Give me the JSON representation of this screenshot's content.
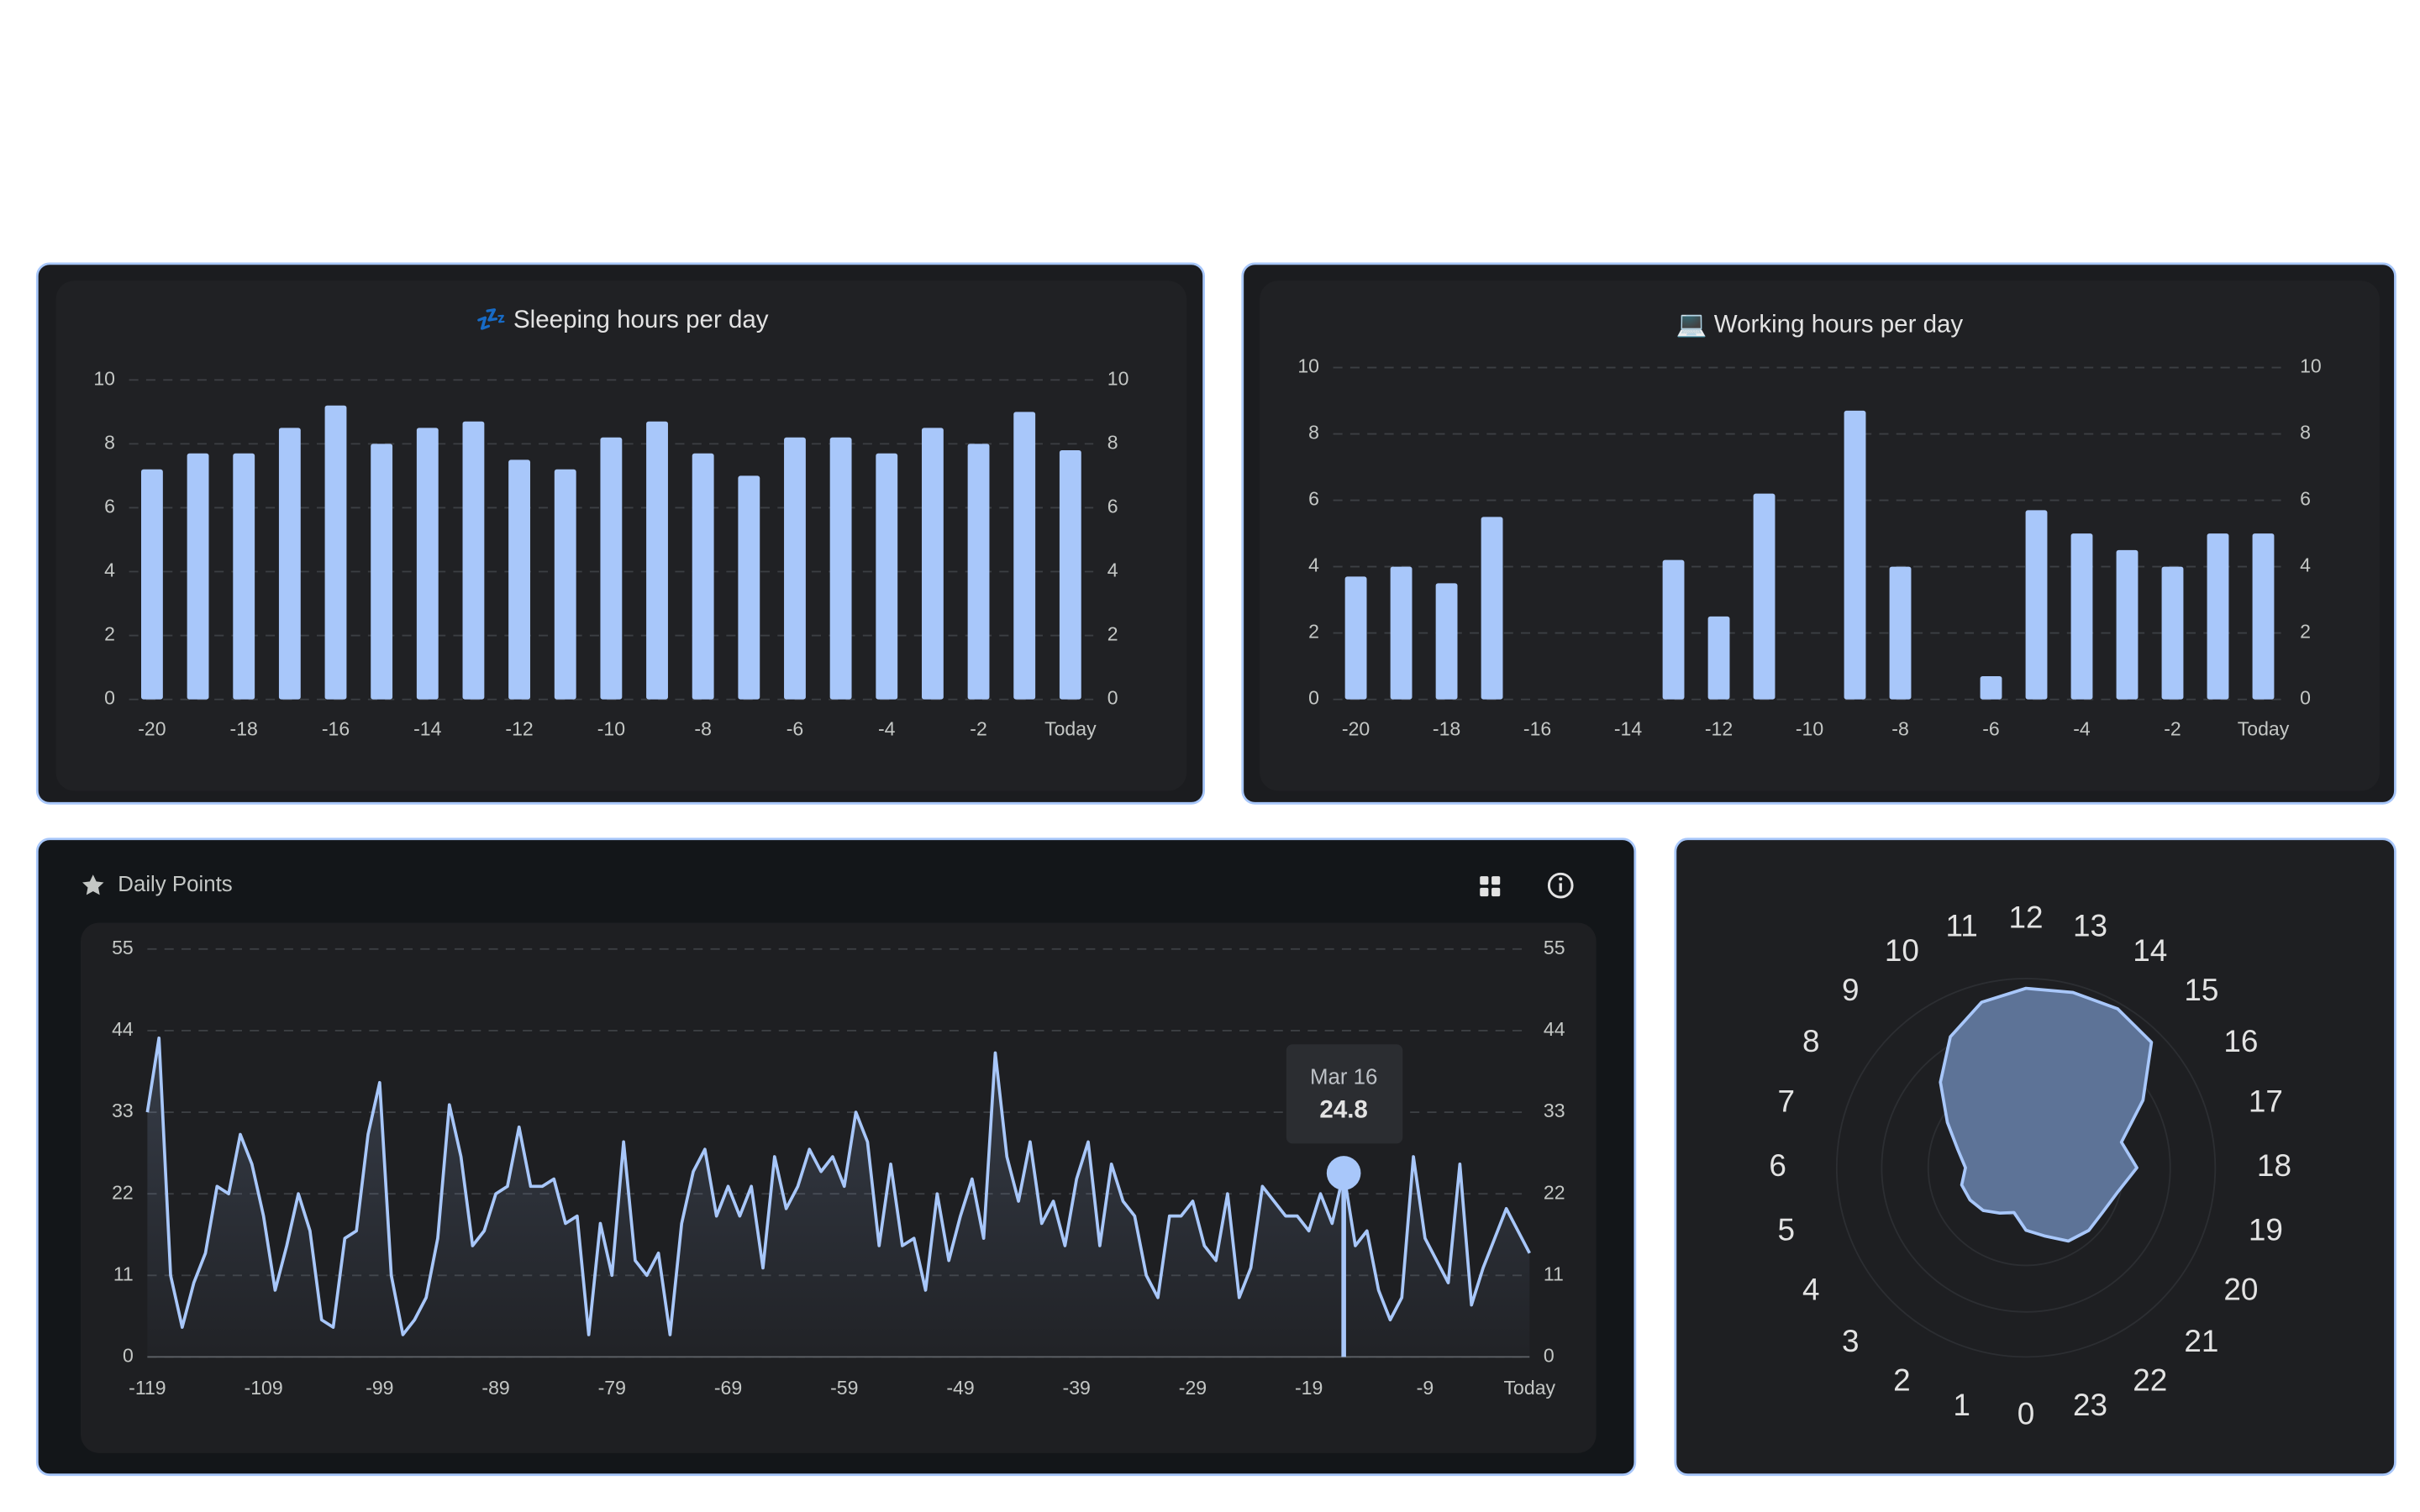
{
  "chart_data": [
    {
      "type": "bar",
      "title": "💤 Sleeping hours per day",
      "categories": [
        "-20",
        null,
        "-18",
        null,
        "-16",
        null,
        "-14",
        null,
        "-12",
        null,
        "-10",
        null,
        "-8",
        null,
        "-6",
        null,
        "-4",
        null,
        "-2",
        null,
        "Today"
      ],
      "values": [
        7.2,
        7.7,
        7.7,
        8.5,
        9.2,
        8.0,
        8.5,
        8.7,
        7.5,
        7.2,
        8.2,
        8.7,
        7.7,
        7.0,
        8.2,
        8.2,
        7.7,
        8.5,
        8.0,
        9.0,
        7.8
      ],
      "color": "#a8c7fa",
      "ylim": [
        0,
        10
      ],
      "yticks": [
        0,
        2,
        4,
        6,
        8,
        10
      ],
      "y2lim": [
        0,
        10
      ],
      "y2ticks": [
        0,
        2,
        4,
        6,
        8,
        10
      ],
      "grid": true
    },
    {
      "type": "bar",
      "title": "💻 Working hours per day",
      "categories": [
        "-20",
        null,
        "-18",
        null,
        "-16",
        null,
        "-14",
        null,
        "-12",
        null,
        "-10",
        null,
        "-8",
        null,
        "-6",
        null,
        "-4",
        null,
        "-2",
        null,
        "Today"
      ],
      "values": [
        3.7,
        4.0,
        3.5,
        5.5,
        0,
        0,
        0,
        4.2,
        2.5,
        6.2,
        0,
        8.7,
        4.0,
        0,
        0.7,
        5.7,
        5.0,
        4.5,
        4.0,
        5.0,
        5.0
      ],
      "color": "#a8c7fa",
      "ylim": [
        0,
        10
      ],
      "yticks": [
        0,
        2,
        4,
        6,
        8,
        10
      ],
      "y2lim": [
        0,
        10
      ],
      "y2ticks": [
        0,
        2,
        4,
        6,
        8,
        10
      ],
      "grid": true
    },
    {
      "type": "line",
      "title": "Daily Points",
      "x": [
        -119,
        -118,
        -117,
        -116,
        -115,
        -114,
        -113,
        -112,
        -111,
        -110,
        -109,
        -108,
        -107,
        -106,
        -105,
        -104,
        -103,
        -102,
        -101,
        -100,
        -99,
        -98,
        -97,
        -96,
        -95,
        -94,
        -93,
        -92,
        -91,
        -90,
        -89,
        -88,
        -87,
        -86,
        -85,
        -84,
        -83,
        -82,
        -81,
        -80,
        -79,
        -78,
        -77,
        -76,
        -75,
        -74,
        -73,
        -72,
        -71,
        -70,
        -69,
        -68,
        -67,
        -66,
        -65,
        -64,
        -63,
        -62,
        -61,
        -60,
        -59,
        -58,
        -57,
        -56,
        -55,
        -54,
        -53,
        -52,
        -51,
        -50,
        -49,
        -48,
        -47,
        -46,
        -45,
        -44,
        -43,
        -42,
        -41,
        -40,
        -39,
        -38,
        -37,
        -36,
        -35,
        -34,
        -33,
        -32,
        -31,
        -30,
        -29,
        -28,
        -27,
        -26,
        -25,
        -24,
        -23,
        -22,
        -21,
        -20,
        -19,
        -18,
        -17,
        -16,
        -15,
        -14,
        -13,
        -12,
        -11,
        -10,
        -9,
        -8,
        -7,
        -6,
        -5,
        -4,
        -3,
        -2,
        -1,
        0
      ],
      "series": [
        {
          "color": "#a8c7fa",
          "values": [
            33,
            43,
            11,
            4,
            10,
            14,
            23,
            22,
            30,
            26,
            19,
            9,
            15,
            22,
            17,
            5,
            4,
            16,
            17,
            30,
            37,
            11,
            3,
            5,
            8,
            16,
            34,
            27,
            15,
            17,
            22,
            23,
            31,
            23,
            23,
            24,
            18,
            19,
            3,
            18,
            11,
            29,
            13,
            11,
            14,
            3,
            18,
            25,
            28,
            19,
            23,
            19,
            23,
            12,
            27,
            20,
            23,
            28,
            25,
            27,
            23,
            33,
            29,
            15,
            26,
            15,
            16,
            9,
            22,
            13,
            19,
            24,
            16,
            41,
            27,
            21,
            29,
            18,
            21,
            15,
            24,
            29,
            15,
            26,
            21,
            19,
            11,
            8,
            19,
            19,
            21,
            15,
            13,
            22,
            8,
            12,
            23,
            21,
            19,
            19,
            17,
            22,
            18,
            24.8,
            15,
            17,
            9,
            5,
            8,
            27,
            16,
            13,
            10,
            26,
            7,
            12,
            16,
            20,
            17,
            14
          ]
        }
      ],
      "xlim": [
        -119,
        0
      ],
      "xticks": [
        -119,
        -109,
        -99,
        -89,
        -79,
        -69,
        -59,
        -49,
        -39,
        -29,
        -19,
        -9,
        {
          "value": 0,
          "label": "Today"
        }
      ],
      "ylim": [
        0,
        55
      ],
      "yticks": [
        0,
        11,
        22,
        33,
        44,
        55
      ],
      "y2lim": [
        0,
        55
      ],
      "y2ticks": [
        0,
        11,
        22,
        33,
        44,
        55
      ],
      "grid": true,
      "tooltip": {
        "title": "Mar 16",
        "x": -16
      }
    },
    {
      "type": "radar",
      "categories": [
        "0",
        "1",
        "2",
        "3",
        "4",
        "5",
        "6",
        "7",
        "8",
        "9",
        "10",
        "11",
        "12",
        "13",
        "14",
        "15",
        "16",
        "17",
        "18",
        "19",
        "20",
        "21",
        "22",
        "23"
      ],
      "values": [
        0.31,
        0.23,
        0.26,
        0.3,
        0.32,
        0.33,
        0.3,
        0.35,
        0.45,
        0.6,
        0.75,
        0.85,
        0.89,
        0.9,
        0.91,
        0.88,
        0.67,
        0.49,
        0.55,
        0.47,
        0.44,
        0.44,
        0.42,
        0.35
      ],
      "color": "#5d7397"
    }
  ]
}
